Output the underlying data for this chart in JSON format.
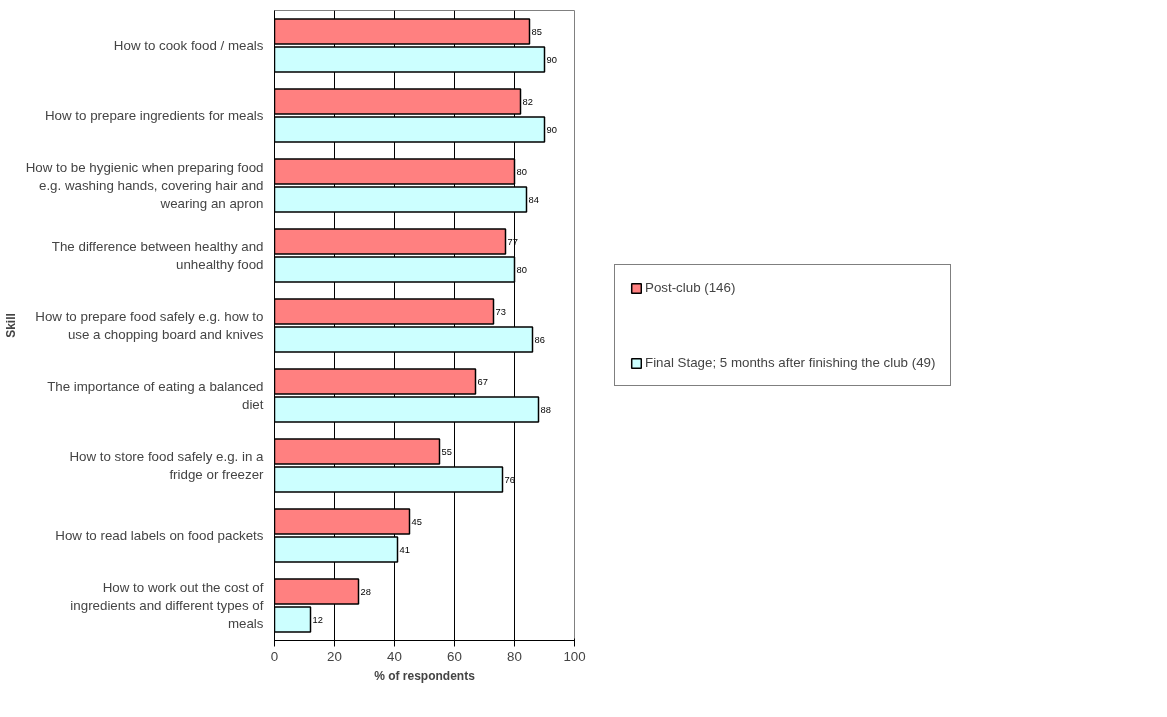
{
  "chart_data": {
    "type": "bar",
    "orientation": "horizontal",
    "xlabel": "% of respondents",
    "ylabel": "Skill",
    "categories": [
      "How to cook food / meals",
      "How to prepare ingredients for meals",
      "How to be hygienic when preparing food e.g. washing hands, covering hair and wearing an apron",
      "The difference between healthy and unhealthy food",
      "How to prepare food safely e.g. how to use a chopping board and knives",
      "The importance of eating a balanced diet",
      "How to store food safely e.g. in a fridge or freezer",
      "How to read labels on food packets",
      "How to work out the cost of ingredients and different types of meals"
    ],
    "series": [
      {
        "name": "Post-club (146)",
        "color": "#ff8080",
        "values": [
          85,
          82,
          80,
          77,
          73,
          67,
          55,
          45,
          28
        ]
      },
      {
        "name": "Final Stage; 5 months after finishing the club (49)",
        "color": "#ccffff",
        "values": [
          90,
          90,
          84,
          80,
          86,
          88,
          76,
          41,
          12
        ]
      }
    ],
    "xlim": [
      0,
      100
    ],
    "xticks": [
      0,
      20,
      40,
      60,
      80,
      100
    ],
    "grid": "x",
    "legend": "right",
    "data_labels": true
  }
}
